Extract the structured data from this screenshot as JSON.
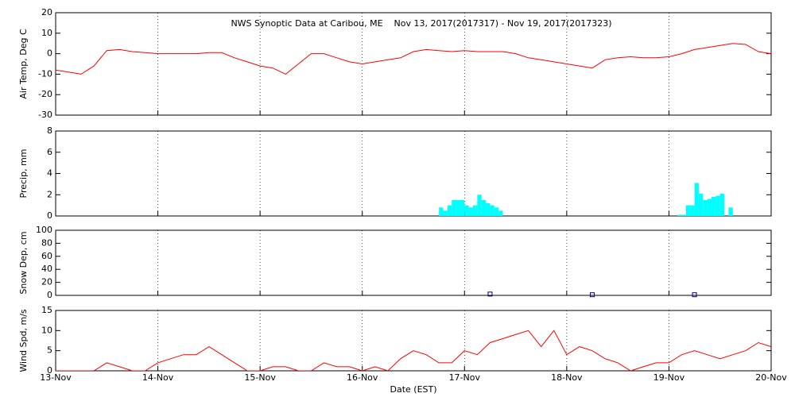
{
  "chart_data": [
    {
      "type": "line",
      "title": "NWS Synoptic Data at Caribou, ME    Nov 13, 2017(2017317) - Nov 19, 2017(2017323)",
      "ylabel": "Air Temp, Deg C",
      "color": "#ff0000",
      "xlim": [
        0,
        168
      ],
      "xticks": [
        0,
        24,
        48,
        72,
        96,
        120,
        144,
        168
      ],
      "ylim": [
        -30,
        20
      ],
      "yticks": [
        -30,
        -20,
        -10,
        0,
        10,
        20
      ],
      "x": [
        0,
        3,
        6,
        9,
        12,
        15,
        18,
        21,
        24,
        27,
        30,
        33,
        36,
        39,
        42,
        45,
        48,
        51,
        54,
        57,
        60,
        63,
        66,
        69,
        72,
        75,
        78,
        81,
        84,
        87,
        90,
        93,
        96,
        99,
        102,
        105,
        108,
        111,
        114,
        117,
        120,
        123,
        126,
        129,
        132,
        135,
        138,
        141,
        144,
        147,
        150,
        153,
        156,
        159,
        162,
        165,
        168
      ],
      "values": [
        -8,
        -9,
        -10,
        -6,
        1.5,
        2,
        1,
        0.5,
        0,
        0,
        0,
        0,
        0.5,
        0.5,
        -2,
        -4,
        -6,
        -7,
        -10,
        -5,
        0,
        0,
        -2,
        -4,
        -5,
        -4,
        -3,
        -2,
        1,
        2,
        1.5,
        1,
        1.5,
        1,
        1,
        1,
        0,
        -2,
        -3,
        -4,
        -5,
        -6,
        -7,
        -3,
        -2,
        -1.5,
        -2,
        -2,
        -1.5,
        0,
        2,
        3,
        4,
        5,
        4.5,
        1,
        0
      ]
    },
    {
      "type": "bar",
      "ylabel": "Precip, mm",
      "color": "#00ffff",
      "xlim": [
        0,
        168
      ],
      "xticks": [
        0,
        24,
        48,
        72,
        96,
        120,
        144,
        168
      ],
      "ylim": [
        0,
        8
      ],
      "yticks": [
        0,
        2,
        4,
        6,
        8
      ],
      "x": [
        90,
        91,
        92,
        93,
        94,
        95,
        96,
        97,
        98,
        99,
        100,
        101,
        102,
        103,
        104,
        146,
        147,
        148,
        149,
        150,
        151,
        152,
        153,
        154,
        155,
        156,
        158
      ],
      "values": [
        0.8,
        0.5,
        1.0,
        1.5,
        1.5,
        1.5,
        1.0,
        0.8,
        1.0,
        2.0,
        1.5,
        1.2,
        1.0,
        0.8,
        0.5,
        0.1,
        0.1,
        1.0,
        1.0,
        3.1,
        2.1,
        1.5,
        1.6,
        1.8,
        1.9,
        2.1,
        0.8
      ]
    },
    {
      "type": "scatter",
      "ylabel": "Snow Dep, cm",
      "color": "#000080",
      "xlim": [
        0,
        168
      ],
      "xticks": [
        0,
        24,
        48,
        72,
        96,
        120,
        144,
        168
      ],
      "ylim": [
        0,
        100
      ],
      "yticks": [
        0,
        20,
        40,
        60,
        80,
        100
      ],
      "x": [
        102,
        126,
        150
      ],
      "values": [
        2,
        1,
        1
      ]
    },
    {
      "type": "line",
      "ylabel": "Wind Spd, m/s",
      "xlabel": "Date (EST)",
      "color": "#ff0000",
      "xlim": [
        0,
        168
      ],
      "xticks": [
        {
          "value": 0,
          "label": "13-Nov"
        },
        {
          "value": 24,
          "label": "14-Nov"
        },
        {
          "value": 48,
          "label": "15-Nov"
        },
        {
          "value": 72,
          "label": "16-Nov"
        },
        {
          "value": 96,
          "label": "17-Nov"
        },
        {
          "value": 120,
          "label": "18-Nov"
        },
        {
          "value": 144,
          "label": "19-Nov"
        },
        {
          "value": 168,
          "label": "20-Nov"
        }
      ],
      "ylim": [
        0,
        15
      ],
      "yticks": [
        0,
        5,
        10,
        15
      ],
      "x": [
        0,
        3,
        6,
        9,
        12,
        15,
        18,
        21,
        24,
        27,
        30,
        33,
        36,
        39,
        42,
        45,
        48,
        51,
        54,
        57,
        60,
        63,
        66,
        69,
        72,
        75,
        78,
        81,
        84,
        87,
        90,
        93,
        96,
        99,
        102,
        105,
        108,
        111,
        114,
        117,
        120,
        123,
        126,
        129,
        132,
        135,
        138,
        141,
        144,
        147,
        150,
        153,
        156,
        159,
        162,
        165,
        168
      ],
      "values": [
        0,
        0,
        0,
        0,
        2,
        1,
        0,
        0,
        2,
        3,
        4,
        4,
        6,
        4,
        2,
        0,
        0,
        1,
        1,
        0,
        0,
        2,
        1,
        1,
        0,
        1,
        0,
        3,
        5,
        4,
        2,
        2,
        5,
        4,
        7,
        8,
        9,
        10,
        6,
        10,
        4,
        6,
        5,
        3,
        2,
        0,
        1,
        2,
        2,
        4,
        5,
        4,
        3,
        4,
        5,
        7,
        6
      ]
    }
  ]
}
